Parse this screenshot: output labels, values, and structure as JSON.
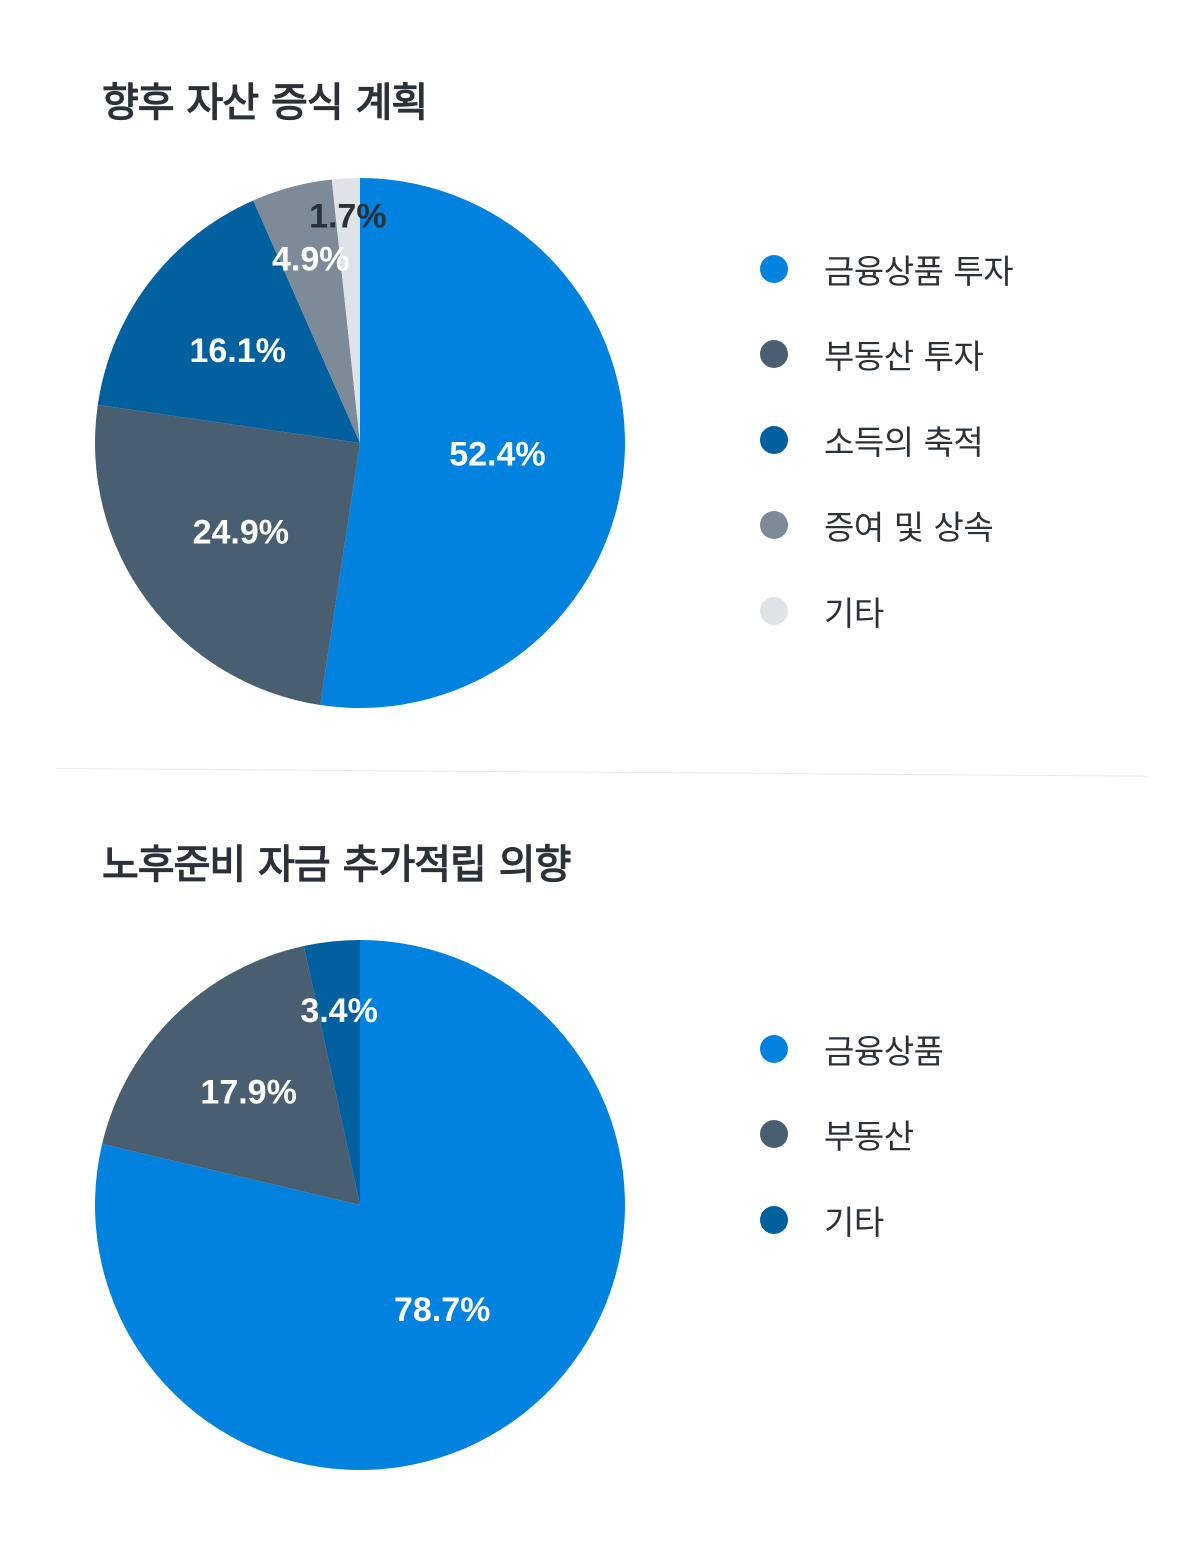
{
  "colors": {
    "blue": "#0182de",
    "slate": "#495f71",
    "navy": "#02609f",
    "gray": "#7c8b97",
    "light": "#dfe3e8",
    "title": "#2b3138"
  },
  "chart_data": [
    {
      "type": "pie",
      "title": "향후 자산 증식 계획",
      "start": "12 o'clock, clockwise",
      "slices": [
        {
          "label": "금융상품 투자",
          "value": 52.4,
          "display": "52.4%",
          "color": "#0182de",
          "label_color": "#ffffff"
        },
        {
          "label": "부동산 투자",
          "value": 24.9,
          "display": "24.9%",
          "color": "#495f71",
          "label_color": "#ffffff"
        },
        {
          "label": "소득의 축적",
          "value": 16.1,
          "display": "16.1%",
          "color": "#02609f",
          "label_color": "#ffffff"
        },
        {
          "label": "증여 및 상속",
          "value": 4.9,
          "display": "4.9%",
          "color": "#7c8b97",
          "label_color": "#ffffff"
        },
        {
          "label": "기타",
          "value": 1.7,
          "display": "1.7%",
          "color": "#dfe3e8",
          "label_color": "#2b3138"
        }
      ],
      "legend_position": "right"
    },
    {
      "type": "pie",
      "title": "노후준비 자금 추가적립 의향",
      "start": "12 o'clock, clockwise",
      "slices": [
        {
          "label": "금융상품",
          "value": 78.7,
          "display": "78.7%",
          "color": "#0182de",
          "label_color": "#ffffff"
        },
        {
          "label": "부동산",
          "value": 17.9,
          "display": "17.9%",
          "color": "#495f71",
          "label_color": "#ffffff"
        },
        {
          "label": "기타",
          "value": 3.4,
          "display": "3.4%",
          "color": "#02609f",
          "label_color": "#ffffff"
        }
      ],
      "legend_position": "right"
    }
  ]
}
